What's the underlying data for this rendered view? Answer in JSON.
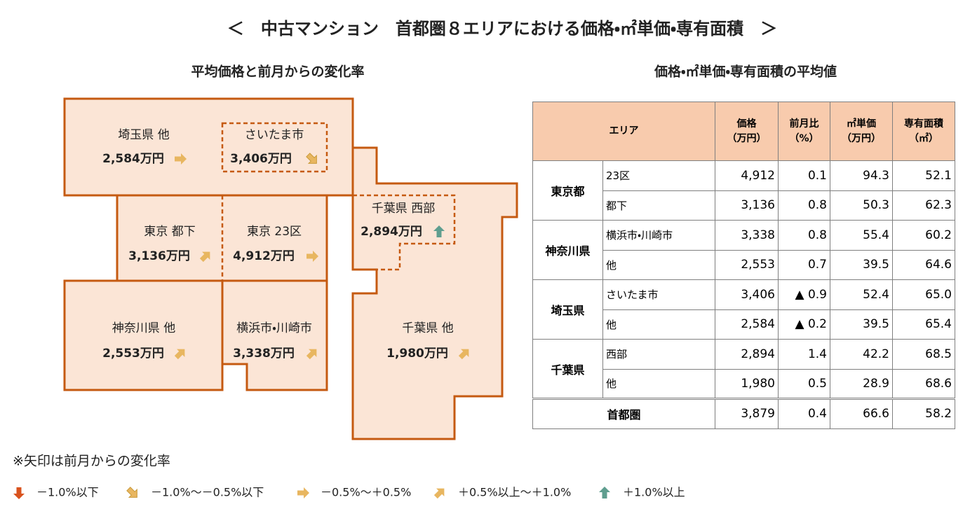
{
  "title": "＜　中古マンション　首都圏８エリアにおける価格・㎡単価・専有面積　＞",
  "map": {
    "title": "平均価格と前月からの変化率",
    "regions": [
      {
        "name": "埼玉県 他",
        "price": "2,584万円"
      },
      {
        "name": "さいたま市",
        "price": "3,406万円"
      },
      {
        "name": "東京 都下",
        "price": "3,136万円"
      },
      {
        "name": "東京 23区",
        "price": "4,912万円"
      },
      {
        "name": "千葉県 西部",
        "price": "2,894万円"
      },
      {
        "name": "神奈川県 他",
        "price": "2,553万円"
      },
      {
        "name": "横浜市・川崎市",
        "price": "3,338万円"
      },
      {
        "name": "千葉県 他",
        "price": "1,980万円"
      }
    ]
  },
  "table": {
    "title": "価格・㎡単価・専有面積の平均値",
    "header": {
      "area": "エリア",
      "columns": [
        {
          "name": "価格",
          "unit": "（万円）"
        },
        {
          "name": "前月比",
          "unit": "（%）"
        },
        {
          "name": "㎡単価",
          "unit": "（万円）"
        },
        {
          "name": "専有面積",
          "unit": "（㎡）"
        }
      ]
    },
    "groups": [
      {
        "name": "東京都",
        "rows": [
          {
            "area": "23区",
            "cells": [
              "4,912",
              "0.1",
              "94.3",
              "52.1"
            ]
          },
          {
            "area": "都下",
            "cells": [
              "3,136",
              "0.8",
              "50.3",
              "62.3"
            ]
          }
        ]
      },
      {
        "name": "神奈川県",
        "rows": [
          {
            "area": "横浜市・川崎市",
            "cells": [
              "3,338",
              "0.8",
              "55.4",
              "60.2"
            ]
          },
          {
            "area": "他",
            "cells": [
              "2,553",
              "0.7",
              "39.5",
              "64.6"
            ]
          }
        ]
      },
      {
        "name": "埼玉県",
        "rows": [
          {
            "area": "さいたま市",
            "cells": [
              "3,406",
              "▲ 0.9",
              "52.4",
              "65.0"
            ]
          },
          {
            "area": "他",
            "cells": [
              "2,584",
              "▲ 0.2",
              "39.5",
              "65.4"
            ]
          }
        ]
      },
      {
        "name": "千葉県",
        "rows": [
          {
            "area": "西部",
            "cells": [
              "2,894",
              "1.4",
              "42.2",
              "68.5"
            ]
          },
          {
            "area": "他",
            "cells": [
              "1,980",
              "0.5",
              "28.9",
              "68.6"
            ]
          }
        ]
      }
    ],
    "total": {
      "area": "首都圏",
      "cells": [
        "3,879",
        "0.4",
        "66.6",
        "58.2"
      ]
    }
  },
  "legend": {
    "note": "※矢印は前月からの変化率",
    "items": [
      "－1.0%以下",
      "－1.0%～－0.5%以下",
      "－0.5%～＋0.5%",
      "＋0.5%以上～＋1.0%",
      "＋1.0%以上"
    ]
  }
}
